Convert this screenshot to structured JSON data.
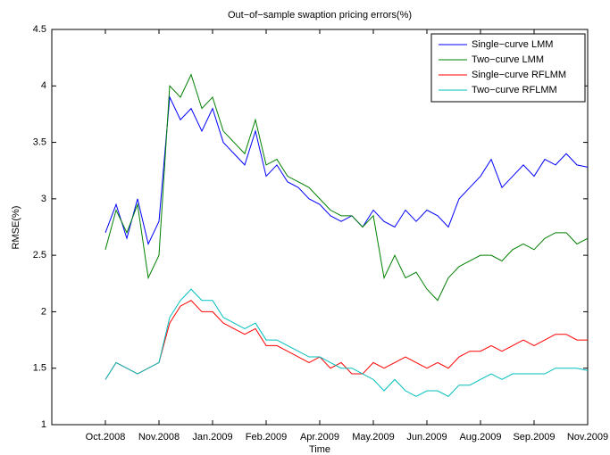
{
  "chart_data": {
    "type": "line",
    "title": "Out−of−sample swaption pricing errors(%)",
    "xlabel": "Time",
    "ylabel": "RMSE(%)",
    "x": [
      1,
      9,
      17,
      25,
      33,
      41,
      49,
      57,
      65,
      73,
      81,
      89,
      97,
      105,
      113,
      121,
      129,
      137,
      145,
      153,
      161,
      169,
      177,
      185,
      193,
      201,
      209,
      217,
      225,
      233,
      241,
      249,
      257,
      265,
      273,
      281,
      289,
      297,
      305,
      313,
      321,
      329,
      337,
      345,
      353,
      361
    ],
    "xlim": [
      -39,
      361
    ],
    "xticks": [
      {
        "value": 1,
        "label": "Oct.2008"
      },
      {
        "value": 41,
        "label": "Nov.2008"
      },
      {
        "value": 81,
        "label": "Jan.2009"
      },
      {
        "value": 121,
        "label": "Feb.2009"
      },
      {
        "value": 161,
        "label": "Apr.2009"
      },
      {
        "value": 201,
        "label": "May.2009"
      },
      {
        "value": 241,
        "label": "Jun.2009"
      },
      {
        "value": 281,
        "label": "Aug.2009"
      },
      {
        "value": 321,
        "label": "Sep.2009"
      },
      {
        "value": 361,
        "label": "Nov.2009"
      }
    ],
    "ylim": [
      1,
      4.5
    ],
    "yticks": [
      1,
      1.5,
      2,
      2.5,
      3,
      3.5,
      4,
      4.5
    ],
    "legend": "upper right",
    "series": [
      {
        "name": "Single−curve LMM",
        "color": "#0000ff",
        "values": [
          2.7,
          2.95,
          2.65,
          3.0,
          2.6,
          2.8,
          3.9,
          3.7,
          3.8,
          3.6,
          3.8,
          3.5,
          3.4,
          3.3,
          3.6,
          3.2,
          3.3,
          3.15,
          3.1,
          3.0,
          2.95,
          2.85,
          2.8,
          2.85,
          2.75,
          2.9,
          2.8,
          2.75,
          2.9,
          2.8,
          2.9,
          2.85,
          2.75,
          3.0,
          3.1,
          3.2,
          3.35,
          3.1,
          3.2,
          3.3,
          3.2,
          3.35,
          3.3,
          3.4,
          3.3,
          3.28
        ]
      },
      {
        "name": "Two−curve LMM",
        "color": "#008000",
        "values": [
          2.55,
          2.9,
          2.7,
          2.95,
          2.3,
          2.5,
          4.0,
          3.9,
          4.1,
          3.8,
          3.9,
          3.6,
          3.5,
          3.4,
          3.7,
          3.3,
          3.35,
          3.2,
          3.15,
          3.1,
          3.0,
          2.9,
          2.85,
          2.85,
          2.75,
          2.85,
          2.3,
          2.5,
          2.3,
          2.35,
          2.2,
          2.1,
          2.3,
          2.4,
          2.45,
          2.5,
          2.5,
          2.45,
          2.55,
          2.6,
          2.55,
          2.65,
          2.7,
          2.7,
          2.6,
          2.65
        ]
      },
      {
        "name": "Single−curve RFLMM",
        "color": "#ff0000",
        "values": [
          1.4,
          1.55,
          1.5,
          1.45,
          1.5,
          1.55,
          1.9,
          2.05,
          2.1,
          2.0,
          2.0,
          1.9,
          1.85,
          1.8,
          1.85,
          1.7,
          1.7,
          1.65,
          1.6,
          1.55,
          1.6,
          1.5,
          1.55,
          1.45,
          1.45,
          1.55,
          1.5,
          1.55,
          1.6,
          1.55,
          1.5,
          1.55,
          1.5,
          1.6,
          1.65,
          1.65,
          1.7,
          1.65,
          1.7,
          1.75,
          1.7,
          1.75,
          1.8,
          1.8,
          1.75,
          1.75
        ]
      },
      {
        "name": "Two−curve RFLMM",
        "color": "#00bfbf",
        "values": [
          1.4,
          1.55,
          1.5,
          1.45,
          1.5,
          1.55,
          1.95,
          2.1,
          2.2,
          2.1,
          2.1,
          1.95,
          1.9,
          1.85,
          1.9,
          1.75,
          1.75,
          1.7,
          1.65,
          1.6,
          1.6,
          1.55,
          1.5,
          1.5,
          1.45,
          1.4,
          1.3,
          1.4,
          1.3,
          1.25,
          1.3,
          1.3,
          1.25,
          1.35,
          1.35,
          1.4,
          1.45,
          1.4,
          1.45,
          1.45,
          1.45,
          1.45,
          1.5,
          1.5,
          1.5,
          1.48
        ]
      }
    ]
  }
}
